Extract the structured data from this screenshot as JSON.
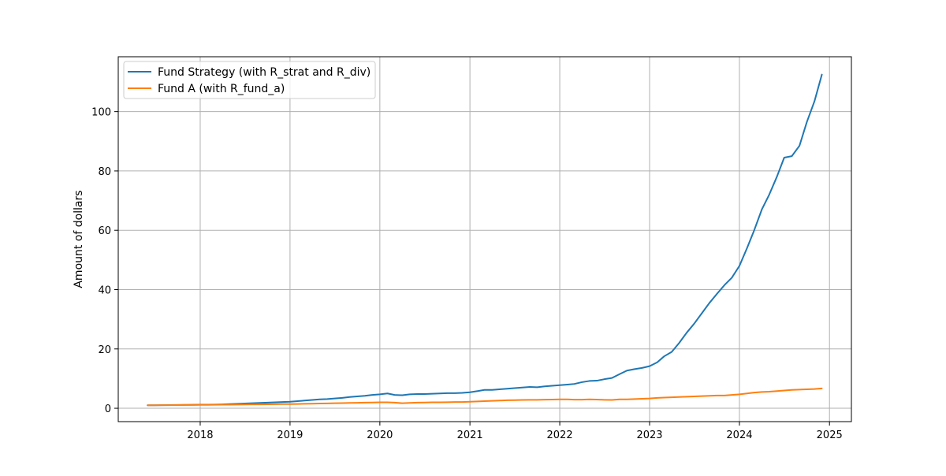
{
  "chart_data": {
    "type": "line",
    "title": "",
    "xlabel": "",
    "ylabel": "Amount of dollars",
    "x_axis_kind": "date",
    "xlim": [
      "2017-02-02",
      "2025-03-31"
    ],
    "ylim": [
      -4.5,
      118.5
    ],
    "x_ticks": [
      "2018-01-01",
      "2019-01-01",
      "2020-01-01",
      "2021-01-01",
      "2022-01-01",
      "2023-01-01",
      "2024-01-01",
      "2025-01-01"
    ],
    "x_tick_labels": [
      "2018",
      "2019",
      "2020",
      "2021",
      "2022",
      "2023",
      "2024",
      "2025"
    ],
    "y_ticks": [
      0,
      20,
      40,
      60,
      80,
      100
    ],
    "y_tick_labels": [
      "0",
      "20",
      "40",
      "60",
      "80",
      "100"
    ],
    "grid": true,
    "legend_position": "upper-left",
    "x": [
      "2017-06-01",
      "2017-07-01",
      "2017-08-01",
      "2017-09-01",
      "2017-10-01",
      "2017-11-01",
      "2017-12-01",
      "2018-01-01",
      "2018-02-01",
      "2018-03-01",
      "2018-04-01",
      "2018-05-01",
      "2018-06-01",
      "2018-07-01",
      "2018-08-01",
      "2018-09-01",
      "2018-10-01",
      "2018-11-01",
      "2018-12-01",
      "2019-01-01",
      "2019-02-01",
      "2019-03-01",
      "2019-04-01",
      "2019-05-01",
      "2019-06-01",
      "2019-07-01",
      "2019-08-01",
      "2019-09-01",
      "2019-10-01",
      "2019-11-01",
      "2019-12-01",
      "2020-01-01",
      "2020-02-01",
      "2020-03-01",
      "2020-04-01",
      "2020-05-01",
      "2020-06-01",
      "2020-07-01",
      "2020-08-01",
      "2020-09-01",
      "2020-10-01",
      "2020-11-01",
      "2020-12-01",
      "2021-01-01",
      "2021-02-01",
      "2021-03-01",
      "2021-04-01",
      "2021-05-01",
      "2021-06-01",
      "2021-07-01",
      "2021-08-01",
      "2021-09-01",
      "2021-10-01",
      "2021-11-01",
      "2021-12-01",
      "2022-01-01",
      "2022-02-01",
      "2022-03-01",
      "2022-04-01",
      "2022-05-01",
      "2022-06-01",
      "2022-07-01",
      "2022-08-01",
      "2022-09-01",
      "2022-10-01",
      "2022-11-01",
      "2022-12-01",
      "2023-01-01",
      "2023-02-01",
      "2023-03-01",
      "2023-04-01",
      "2023-05-01",
      "2023-06-01",
      "2023-07-01",
      "2023-08-01",
      "2023-09-01",
      "2023-10-01",
      "2023-11-01",
      "2023-12-01",
      "2024-01-01",
      "2024-02-01",
      "2024-03-01",
      "2024-04-01",
      "2024-05-01",
      "2024-06-01",
      "2024-07-01",
      "2024-08-01",
      "2024-09-01",
      "2024-10-01",
      "2024-11-01",
      "2024-12-01"
    ],
    "series": [
      {
        "name": "Fund Strategy (with R_strat and R_div)",
        "color": "#1f77b4",
        "values": [
          1.0,
          1.02,
          1.05,
          1.08,
          1.12,
          1.15,
          1.18,
          1.2,
          1.22,
          1.25,
          1.3,
          1.4,
          1.5,
          1.6,
          1.7,
          1.8,
          1.9,
          2.0,
          2.1,
          2.2,
          2.4,
          2.6,
          2.8,
          3.0,
          3.1,
          3.3,
          3.5,
          3.8,
          4.0,
          4.2,
          4.5,
          4.7,
          5.0,
          4.5,
          4.4,
          4.7,
          4.8,
          4.8,
          4.9,
          5.0,
          5.1,
          5.1,
          5.2,
          5.4,
          5.8,
          6.2,
          6.2,
          6.4,
          6.6,
          6.8,
          7.0,
          7.2,
          7.1,
          7.4,
          7.6,
          7.8,
          8.0,
          8.2,
          8.8,
          9.2,
          9.3,
          9.8,
          10.2,
          11.5,
          12.7,
          13.2,
          13.6,
          14.2,
          15.5,
          17.5,
          19.0,
          22.0,
          25.5,
          28.5,
          32.0,
          35.5,
          38.5,
          41.5,
          44.0,
          48.0,
          54.0,
          60.0,
          67.0,
          72.0,
          78.0,
          84.5,
          85.0,
          88.5,
          96.5,
          103.5,
          112.5
        ]
      },
      {
        "name": "Fund A (with R_fund_a)",
        "color": "#ff7f0e",
        "values": [
          1.0,
          1.02,
          1.04,
          1.06,
          1.08,
          1.1,
          1.12,
          1.14,
          1.16,
          1.18,
          1.2,
          1.22,
          1.25,
          1.28,
          1.3,
          1.32,
          1.35,
          1.38,
          1.4,
          1.42,
          1.45,
          1.5,
          1.55,
          1.6,
          1.65,
          1.7,
          1.75,
          1.8,
          1.85,
          1.9,
          1.95,
          2.0,
          2.0,
          1.9,
          1.7,
          1.8,
          1.9,
          1.95,
          2.0,
          2.0,
          2.05,
          2.1,
          2.1,
          2.2,
          2.3,
          2.4,
          2.5,
          2.6,
          2.7,
          2.75,
          2.8,
          2.85,
          2.85,
          2.9,
          2.95,
          3.0,
          3.0,
          2.9,
          2.9,
          3.0,
          2.95,
          2.85,
          2.8,
          3.0,
          3.0,
          3.1,
          3.2,
          3.3,
          3.5,
          3.6,
          3.7,
          3.8,
          3.9,
          4.0,
          4.1,
          4.2,
          4.3,
          4.3,
          4.5,
          4.7,
          5.0,
          5.3,
          5.5,
          5.6,
          5.8,
          6.0,
          6.2,
          6.3,
          6.4,
          6.5,
          6.7
        ]
      }
    ]
  }
}
